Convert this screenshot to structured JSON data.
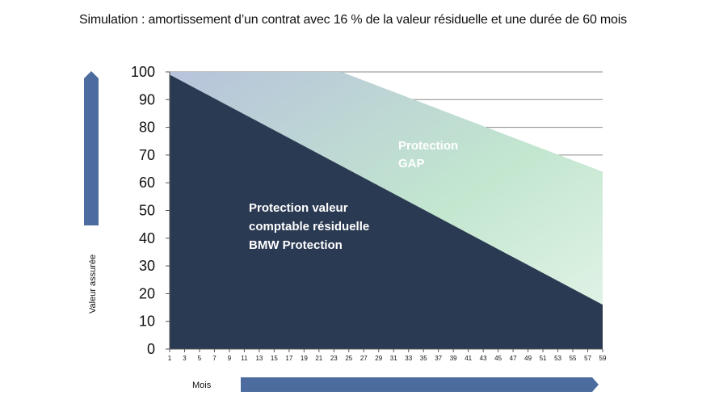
{
  "chart_data": {
    "type": "area",
    "title": "Simulation : amortissement d’un contrat avec 16 % de la valeur résiduelle et une durée de 60 mois",
    "xlabel": "Mois",
    "ylabel": "Valeur assurée",
    "x_range": [
      1,
      59
    ],
    "x_ticks": [
      "1",
      "3",
      "5",
      "7",
      "9",
      "11",
      "13",
      "15",
      "17",
      "19",
      "21",
      "23",
      "25",
      "27",
      "29",
      "31",
      "33",
      "35",
      "37",
      "39",
      "41",
      "43",
      "45",
      "47",
      "49",
      "51",
      "53",
      "55",
      "57",
      "59"
    ],
    "ylim": [
      0,
      100
    ],
    "y_ticks": [
      "0",
      "10",
      "20",
      "30",
      "40",
      "50",
      "60",
      "70",
      "80",
      "90",
      "100"
    ],
    "grid": true,
    "series": [
      {
        "name": "Protection valeur comptable résiduelle BMW Protection",
        "color": "#2b3a53",
        "points": [
          [
            1,
            99
          ],
          [
            59,
            16
          ]
        ]
      },
      {
        "name": "Protection GAP",
        "color_top": "#b9c5db",
        "color_bottom": "#c9ecd0",
        "points": [
          [
            1,
            100
          ],
          [
            24,
            100
          ],
          [
            59,
            64
          ]
        ]
      }
    ],
    "annotations": [
      {
        "lines": [
          "Protection valeur",
          "comptable résiduelle",
          "BMW Protection"
        ]
      },
      {
        "lines": [
          "Protection",
          "GAP"
        ]
      }
    ]
  }
}
